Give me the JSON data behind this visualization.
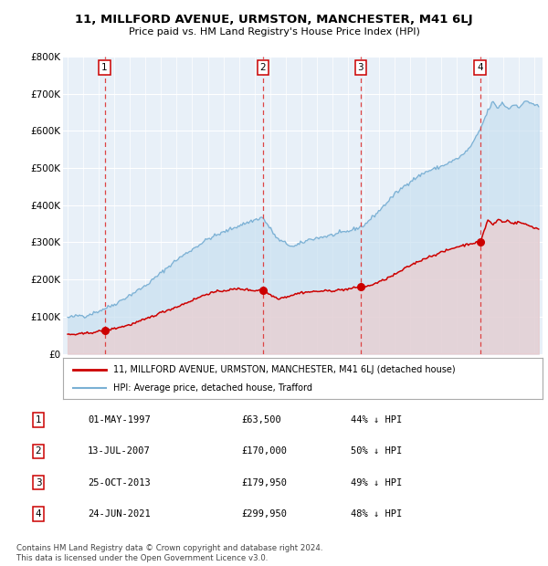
{
  "title1": "11, MILLFORD AVENUE, URMSTON, MANCHESTER, M41 6LJ",
  "title2": "Price paid vs. HM Land Registry's House Price Index (HPI)",
  "legend_red": "11, MILLFORD AVENUE, URMSTON, MANCHESTER, M41 6LJ (detached house)",
  "legend_blue": "HPI: Average price, detached house, Trafford",
  "footer1": "Contains HM Land Registry data © Crown copyright and database right 2024.",
  "footer2": "This data is licensed under the Open Government Licence v3.0.",
  "transactions": [
    {
      "num": 1,
      "date": "01-MAY-1997",
      "year": 1997.37,
      "price": 63500,
      "label": "£63,500",
      "pct": "44% ↓ HPI"
    },
    {
      "num": 2,
      "date": "13-JUL-2007",
      "year": 2007.54,
      "price": 170000,
      "label": "£170,000",
      "pct": "50% ↓ HPI"
    },
    {
      "num": 3,
      "date": "25-OCT-2013",
      "year": 2013.82,
      "price": 179950,
      "label": "£179,950",
      "pct": "49% ↓ HPI"
    },
    {
      "num": 4,
      "date": "24-JUN-2021",
      "year": 2021.49,
      "price": 299950,
      "label": "£299,950",
      "pct": "48% ↓ HPI"
    }
  ],
  "ylim": [
    0,
    800000
  ],
  "yticks": [
    0,
    100000,
    200000,
    300000,
    400000,
    500000,
    600000,
    700000,
    800000
  ],
  "ytick_labels": [
    "£0",
    "£100K",
    "£200K",
    "£300K",
    "£400K",
    "£500K",
    "£600K",
    "£700K",
    "£800K"
  ],
  "xlim_start": 1994.7,
  "xlim_end": 2025.5,
  "red_color": "#cc0000",
  "blue_color": "#7ab0d4",
  "blue_fill": "#c8dff0",
  "bg_color": "#e8f0f8",
  "grid_color": "#ffffff",
  "dashed_color": "#dd4444"
}
